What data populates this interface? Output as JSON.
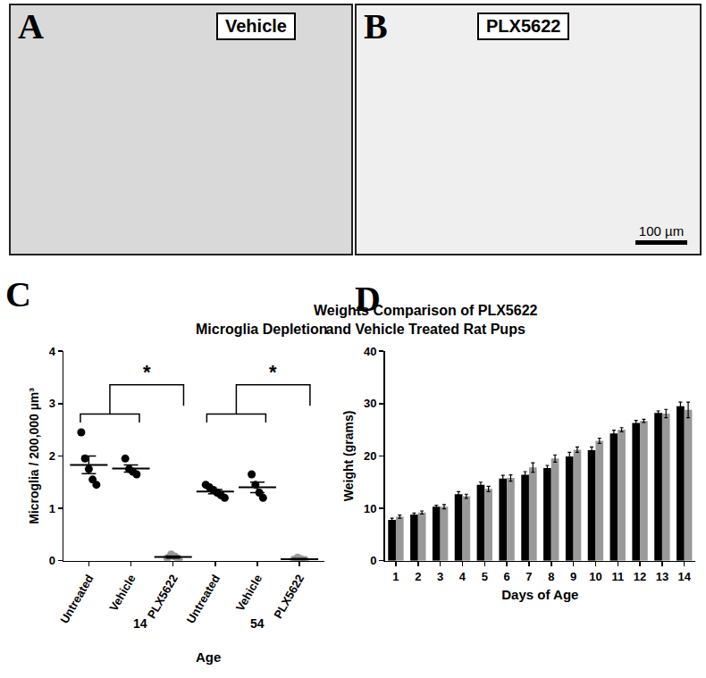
{
  "images": [
    {
      "panel": "A",
      "label": "Vehicle"
    },
    {
      "panel": "B",
      "label": "PLX5622",
      "scale_bar": "100 µm"
    }
  ],
  "chart_data": [
    {
      "panel": "C",
      "type": "scatter",
      "title": "Microglia Depletion",
      "x_label": "Age",
      "y_label": "Microglia / 200,000 µm³",
      "categories": [
        "Untreated",
        "Vehicle",
        "PLX5622",
        "Untreated",
        "Vehicle",
        "PLX5622"
      ],
      "groups": [
        "14",
        "14",
        "14",
        "54",
        "54",
        "54"
      ],
      "values": [
        [
          2.45,
          1.95,
          1.75,
          1.55,
          1.45
        ],
        [
          1.95,
          1.75,
          1.7,
          1.65
        ],
        [
          0.05,
          0.12,
          0.08,
          0.03
        ],
        [
          1.45,
          1.4,
          1.35,
          1.3,
          1.25,
          1.2
        ],
        [
          1.65,
          1.45,
          1.3,
          1.2
        ],
        [
          0.02,
          0.06,
          0.03,
          0.01
        ]
      ],
      "mean": [
        1.83,
        1.76,
        0.07,
        1.32,
        1.4,
        0.03
      ],
      "sem": [
        0.17,
        0.07,
        0.02,
        0.04,
        0.1,
        0.01
      ],
      "colors": [
        "#000000",
        "#000000",
        "#999999",
        "#000000",
        "#000000",
        "#999999"
      ],
      "ylim": [
        0,
        4
      ],
      "yticks": [
        0,
        1,
        2,
        3,
        4
      ],
      "grid": false,
      "significance": [
        {
          "text": "*",
          "left": [
            0,
            1
          ],
          "right": [
            2
          ]
        },
        {
          "text": "*",
          "left": [
            3,
            4
          ],
          "right": [
            5
          ]
        }
      ]
    },
    {
      "panel": "D",
      "type": "bar",
      "title": "Weights Comparison of PLX5622\nand Vehicle Treated Rat Pups",
      "x_label": "Days of Age",
      "y_label": "Weight (grams)",
      "categories": [
        1,
        2,
        3,
        4,
        5,
        6,
        7,
        8,
        9,
        10,
        11,
        12,
        13,
        14
      ],
      "series": [
        {
          "color": "#000000",
          "values": [
            7.8,
            8.8,
            10.3,
            12.7,
            14.5,
            15.7,
            16.4,
            17.7,
            19.9,
            21.1,
            24.3,
            26.3,
            28.2,
            29.5
          ],
          "error": [
            0.3,
            0.3,
            0.3,
            0.5,
            0.5,
            0.6,
            0.6,
            0.5,
            0.8,
            0.6,
            0.6,
            0.5,
            0.4,
            0.8
          ]
        },
        {
          "color": "#999999",
          "values": [
            8.4,
            9.2,
            10.3,
            12.3,
            13.7,
            15.8,
            17.8,
            19.5,
            21.2,
            22.9,
            25.0,
            26.7,
            28.1,
            28.8
          ],
          "error": [
            0.3,
            0.3,
            0.4,
            0.4,
            0.5,
            0.6,
            0.9,
            0.7,
            0.5,
            0.5,
            0.4,
            0.3,
            0.8,
            1.5
          ]
        }
      ],
      "ylim": [
        0,
        40
      ],
      "yticks": [
        0,
        10,
        20,
        30,
        40
      ],
      "grid": false
    }
  ]
}
